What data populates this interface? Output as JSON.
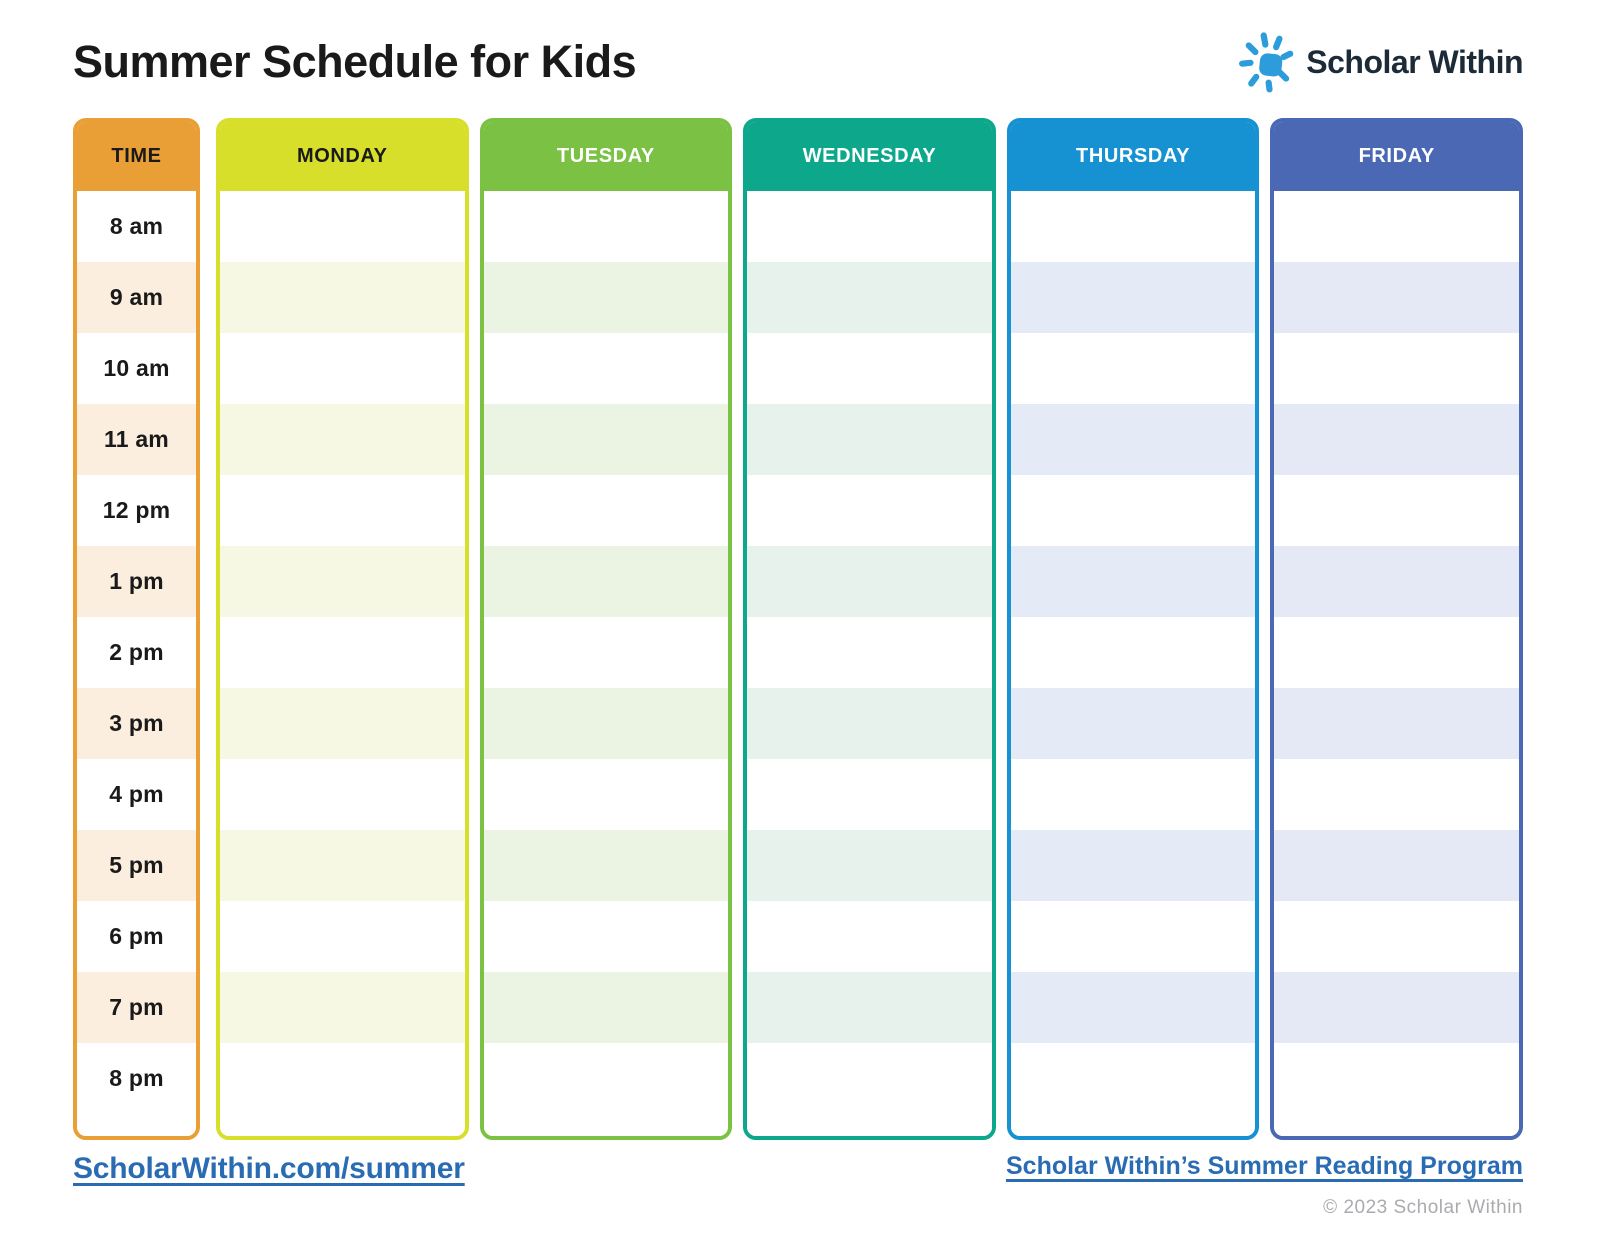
{
  "page": {
    "title": "Summer Schedule for Kids"
  },
  "logo": {
    "brand": "Scholar Within",
    "sun_icon": "sun-icon",
    "sun_color": "#2D9CDB",
    "text_color": "#1D2B39"
  },
  "schedule": {
    "time_header": "TIME",
    "time_column": {
      "color": "#E99F35",
      "stripe": "#FCEEDF",
      "header_text_color": "#1A1A1A"
    },
    "times": [
      "8 am",
      "9 am",
      "10 am",
      "11 am",
      "12 pm",
      "1 pm",
      "2 pm",
      "3 pm",
      "4 pm",
      "5 pm",
      "6 pm",
      "7 pm",
      "8 pm"
    ],
    "days": [
      {
        "label": "MONDAY",
        "color": "#D8DF2B",
        "stripe": "#F7F8E4",
        "header_text_color": "#1A1A1A"
      },
      {
        "label": "TUESDAY",
        "color": "#7BC143",
        "stripe": "#EBF3E2",
        "header_text_color": "#FFFFFF"
      },
      {
        "label": "WEDNESDAY",
        "color": "#0DA78C",
        "stripe": "#E7F2EC",
        "header_text_color": "#FFFFFF"
      },
      {
        "label": "THURSDAY",
        "color": "#1692D2",
        "stripe": "#E4EAF6",
        "header_text_color": "#FFFFFF"
      },
      {
        "label": "FRIDAY",
        "color": "#4A68B4",
        "stripe": "#E4E9F5",
        "header_text_color": "#FFFFFF"
      }
    ]
  },
  "footer": {
    "left_link": "ScholarWithin.com/summer",
    "right_link": "Scholar Within’s Summer Reading Program",
    "copyright": "© 2023 Scholar Within",
    "link_color": "#2A6CB3"
  },
  "colors": {
    "text_dark": "#1A1A1A",
    "copyright_gray": "#A9ABAE"
  }
}
